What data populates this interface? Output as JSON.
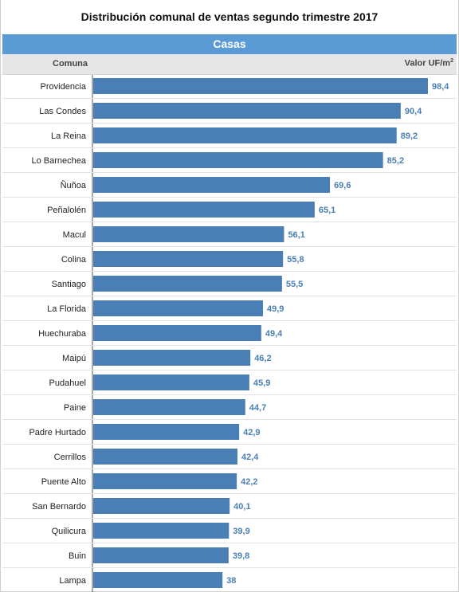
{
  "title": "Distribución comunal de ventas segundo trimestre 2017",
  "section": "Casas",
  "column_left": "Comuna",
  "column_right": "Valor UF/m",
  "column_right_sup": "2",
  "colors": {
    "bar": "#4a7fb5",
    "section": "#5b9bd5"
  },
  "chart_data": {
    "type": "bar",
    "orientation": "horizontal",
    "title": "Distribución comunal de ventas segundo trimestre 2017",
    "xlabel": "Valor UF/m2",
    "ylabel": "Comuna",
    "categories": [
      "Providencia",
      "Las Condes",
      "La Reina",
      "Lo Barnechea",
      "Ñuñoa",
      "Peñalolén",
      "Macul",
      "Colina",
      "Santiago",
      "La Florida",
      "Huechuraba",
      "Maipú",
      "Pudahuel",
      "Paine",
      "Padre Hurtado",
      "Cerrillos",
      "Puente Alto",
      "San Bernardo",
      "Quilicura",
      "Buin",
      "Lampa"
    ],
    "values": [
      98.4,
      90.4,
      89.2,
      85.2,
      69.6,
      65.1,
      56.1,
      55.8,
      55.5,
      49.9,
      49.4,
      46.2,
      45.9,
      44.7,
      42.9,
      42.4,
      42.2,
      40.1,
      39.9,
      39.8,
      38
    ],
    "value_labels": [
      "98,4",
      "90,4",
      "89,2",
      "85,2",
      "69,6",
      "65,1",
      "56,1",
      "55,8",
      "55,5",
      "49,9",
      "49,4",
      "46,2",
      "45,9",
      "44,7",
      "42,9",
      "42,4",
      "42,2",
      "40,1",
      "39,9",
      "39,8",
      "38"
    ],
    "xlim": [
      0,
      98.4
    ],
    "grid": false,
    "legend": "none"
  }
}
